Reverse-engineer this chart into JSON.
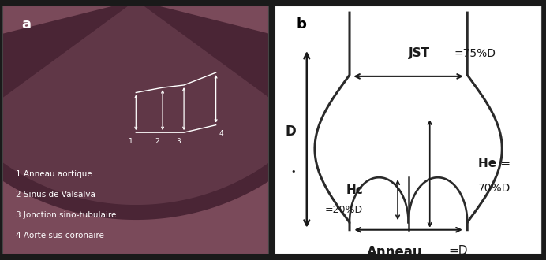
{
  "panel_a_bg": "#7a4a5a",
  "panel_b_bg": "#FFFFFF",
  "outer_border": "#1a1a1a",
  "label_a": "a",
  "label_b": "b",
  "legend_lines": [
    "1 Anneau aortique",
    "2 Sinus de Valsalva",
    "3 Jonction sino-tubulaire",
    "4 Aorte sus-coronaire"
  ],
  "jst_text": "JST",
  "jst_value": "=75%D",
  "hc_text": "Hc",
  "hc_value": "=20%D",
  "he_text": "He =",
  "he_value": "70%D",
  "d_label": "D",
  "anneau_text": "Anneau",
  "anneau_value": "=D",
  "aorta_color": "#2a2a2a",
  "arrow_color": "#1a1a1a",
  "text_color": "#1a1a1a",
  "white_line_color": "#ffffff"
}
